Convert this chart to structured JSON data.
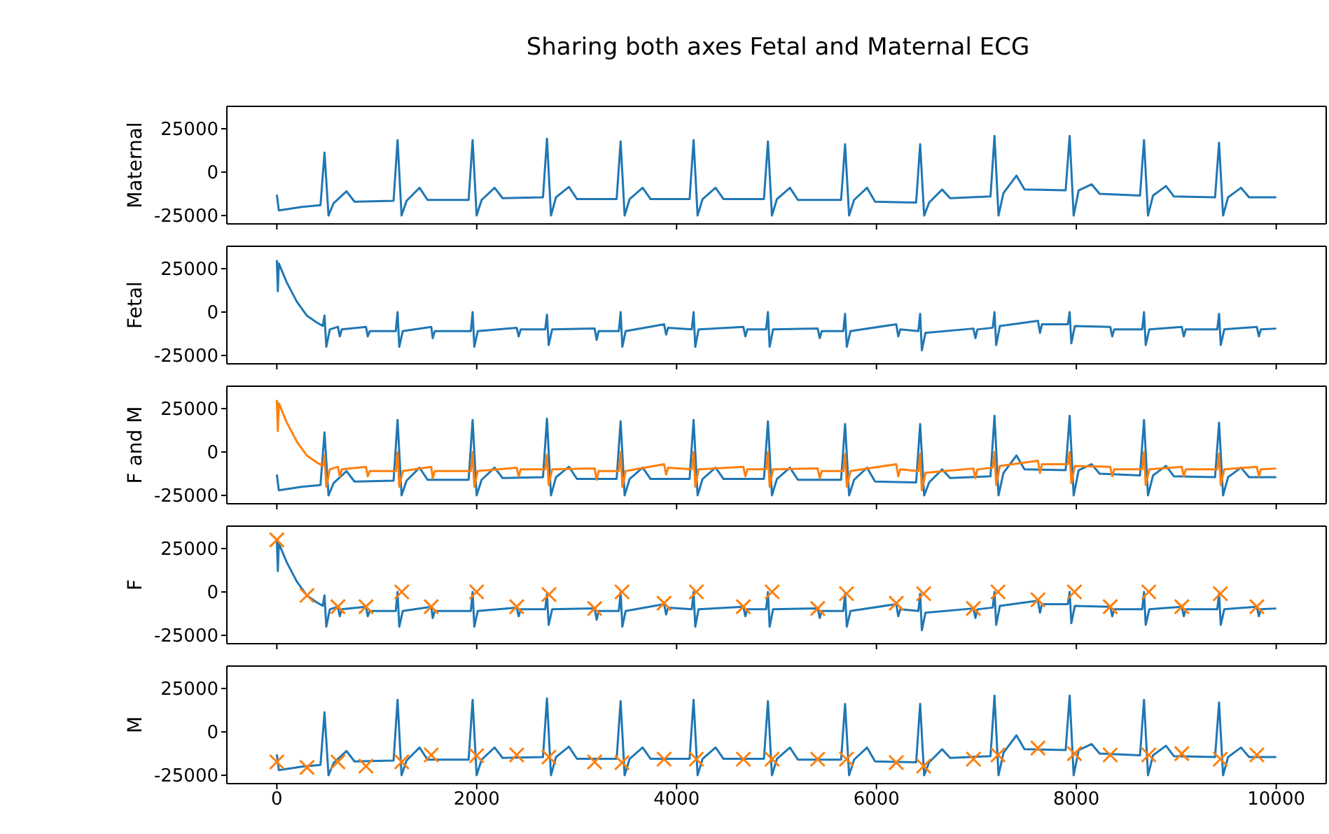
{
  "chart_data": [
    {
      "type": "line",
      "title": "Sharing both axes Fetal and Maternal ECG",
      "ylabel": "Maternal",
      "xlim": [
        -500,
        10500
      ],
      "xticks": [
        0,
        2000,
        4000,
        6000,
        8000,
        10000
      ],
      "ylim": [
        -29800,
        37900
      ],
      "yticks": [
        -25000,
        0,
        25000
      ],
      "tick_labels": "y",
      "series": [
        {
          "color": "#1f77b4",
          "x": [
            0,
            20,
            250,
            437,
            477,
            517,
            567,
            697,
            777,
            1168,
            1208,
            1248,
            1298,
            1428,
            1508,
            1919,
            1959,
            1999,
            2049,
            2179,
            2259,
            2663,
            2703,
            2743,
            2793,
            2923,
            3003,
            3400,
            3440,
            3480,
            3530,
            3660,
            3740,
            4130,
            4170,
            4210,
            4260,
            4390,
            4470,
            4874,
            4914,
            4954,
            5004,
            5134,
            5214,
            5646,
            5686,
            5726,
            5776,
            5906,
            5986,
            6397,
            6437,
            6477,
            6527,
            6657,
            6737,
            7141,
            7181,
            7221,
            7271,
            7401,
            7481,
            7893,
            7933,
            7973,
            8023,
            8153,
            8233,
            8637,
            8677,
            8717,
            8767,
            8897,
            8977,
            9388,
            9428,
            9468,
            9518,
            9648,
            9728,
            10000
          ],
          "values": [
            -13000,
            -22000,
            -20000,
            -19000,
            11300,
            -25000,
            -18000,
            -11000,
            -17000,
            -16500,
            18500,
            -25000,
            -16500,
            -9000,
            -16000,
            -16000,
            18500,
            -25000,
            -16000,
            -9000,
            -15000,
            -14500,
            19300,
            -25000,
            -14500,
            -8500,
            -15500,
            -15500,
            17700,
            -25000,
            -15500,
            -9000,
            -15500,
            -15500,
            18500,
            -25000,
            -15500,
            -9000,
            -15500,
            -15500,
            17700,
            -25000,
            -15500,
            -9000,
            -16000,
            -16000,
            16100,
            -25000,
            -16000,
            -9000,
            -17000,
            -17500,
            16100,
            -25000,
            -17500,
            -10000,
            -15000,
            -14000,
            20900,
            -25000,
            -12000,
            -2000,
            -10000,
            -10500,
            20900,
            -25000,
            -10500,
            -7000,
            -12500,
            -13500,
            18500,
            -25000,
            -13500,
            -8000,
            -14000,
            -14500,
            16900,
            -25000,
            -14500,
            -9000,
            -14500,
            -14500
          ]
        }
      ]
    },
    {
      "type": "line",
      "ylabel": "Fetal",
      "xlim": [
        -500,
        10500
      ],
      "xticks": [
        0,
        2000,
        4000,
        6000,
        8000,
        10000
      ],
      "ylim": [
        -29800,
        37900
      ],
      "yticks": [
        -25000,
        0,
        25000
      ],
      "tick_labels": "y",
      "series": [
        {
          "color": "#1f77b4",
          "x": [
            0,
            10,
            20,
            100,
            200,
            300,
            400,
            460,
            477,
            495,
            530,
            611,
            630,
            650,
            892,
            910,
            930,
            1190,
            1208,
            1225,
            1260,
            1545,
            1560,
            1580,
            1941,
            1959,
            1976,
            2010,
            2400,
            2420,
            2440,
            2685,
            2703,
            2720,
            2755,
            3180,
            3200,
            3220,
            3422,
            3440,
            3457,
            3490,
            3875,
            3895,
            3915,
            4152,
            4170,
            4187,
            4220,
            4668,
            4688,
            4708,
            4896,
            4914,
            4931,
            4965,
            5412,
            5432,
            5452,
            5668,
            5686,
            5703,
            5740,
            6198,
            6218,
            6238,
            6419,
            6437,
            6454,
            6490,
            6970,
            6990,
            7010,
            7163,
            7181,
            7198,
            7235,
            7616,
            7636,
            7656,
            7915,
            7933,
            7950,
            7985,
            8339,
            8359,
            8379,
            8659,
            8677,
            8694,
            8730,
            9055,
            9075,
            9095,
            9410,
            9428,
            9445,
            9480,
            9806,
            9826,
            9846,
            10000
          ],
          "values": [
            30000,
            12000,
            28000,
            17000,
            6000,
            -2000,
            -6000,
            -8000,
            -2000,
            -20000,
            -10000,
            -8500,
            -14000,
            -10000,
            -8500,
            -14000,
            -11000,
            -11000,
            0,
            -20000,
            -11000,
            -8500,
            -15000,
            -11000,
            -11000,
            0,
            -20000,
            -11000,
            -9000,
            -14000,
            -10000,
            -10000,
            -1500,
            -19000,
            -10000,
            -9500,
            -16000,
            -11000,
            -11000,
            0,
            -20000,
            -11000,
            -7000,
            -13000,
            -9000,
            -10000,
            0,
            -20000,
            -10000,
            -8500,
            -14000,
            -10000,
            -10000,
            0,
            -20000,
            -10000,
            -9500,
            -15000,
            -11000,
            -11000,
            -1000,
            -20000,
            -11000,
            -7000,
            -14000,
            -10000,
            -11000,
            -1000,
            -22000,
            -12000,
            -9500,
            -15000,
            -10000,
            -9000,
            0,
            -19000,
            -8000,
            -5000,
            -12000,
            -7000,
            -7000,
            0,
            -18000,
            -8000,
            -8500,
            -14000,
            -10000,
            -10000,
            0,
            -19000,
            -10000,
            -8500,
            -14000,
            -10000,
            -10000,
            -1000,
            -19000,
            -10000,
            -8500,
            -14000,
            -10000,
            -9500
          ]
        }
      ]
    },
    {
      "type": "line",
      "ylabel": "F and M",
      "xlim": [
        -500,
        10500
      ],
      "xticks": [
        0,
        2000,
        4000,
        6000,
        8000,
        10000
      ],
      "ylim": [
        -29800,
        37900
      ],
      "yticks": [
        -25000,
        0,
        25000
      ],
      "tick_labels": "y",
      "series": [
        {
          "color": "#1f77b4",
          "x": [
            0,
            20,
            250,
            437,
            477,
            517,
            567,
            697,
            777,
            1168,
            1208,
            1248,
            1298,
            1428,
            1508,
            1919,
            1959,
            1999,
            2049,
            2179,
            2259,
            2663,
            2703,
            2743,
            2793,
            2923,
            3003,
            3400,
            3440,
            3480,
            3530,
            3660,
            3740,
            4130,
            4170,
            4210,
            4260,
            4390,
            4470,
            4874,
            4914,
            4954,
            5004,
            5134,
            5214,
            5646,
            5686,
            5726,
            5776,
            5906,
            5986,
            6397,
            6437,
            6477,
            6527,
            6657,
            6737,
            7141,
            7181,
            7221,
            7271,
            7401,
            7481,
            7893,
            7933,
            7973,
            8023,
            8153,
            8233,
            8637,
            8677,
            8717,
            8767,
            8897,
            8977,
            9388,
            9428,
            9468,
            9518,
            9648,
            9728,
            10000
          ],
          "values": [
            -13000,
            -22000,
            -20000,
            -19000,
            11300,
            -25000,
            -18000,
            -11000,
            -17000,
            -16500,
            18500,
            -25000,
            -16500,
            -9000,
            -16000,
            -16000,
            18500,
            -25000,
            -16000,
            -9000,
            -15000,
            -14500,
            19300,
            -25000,
            -14500,
            -8500,
            -15500,
            -15500,
            17700,
            -25000,
            -15500,
            -9000,
            -15500,
            -15500,
            18500,
            -25000,
            -15500,
            -9000,
            -15500,
            -15500,
            17700,
            -25000,
            -15500,
            -9000,
            -16000,
            -16000,
            16100,
            -25000,
            -16000,
            -9000,
            -17000,
            -17500,
            16100,
            -25000,
            -17500,
            -10000,
            -15000,
            -14000,
            20900,
            -25000,
            -12000,
            -2000,
            -10000,
            -10500,
            20900,
            -25000,
            -10500,
            -7000,
            -12500,
            -13500,
            18500,
            -25000,
            -13500,
            -8000,
            -14000,
            -14500,
            16900,
            -25000,
            -14500,
            -9000,
            -14500,
            -14500
          ]
        },
        {
          "color": "#ff7f0e",
          "x": [
            0,
            10,
            20,
            100,
            200,
            300,
            400,
            460,
            477,
            495,
            530,
            611,
            630,
            650,
            892,
            910,
            930,
            1190,
            1208,
            1225,
            1260,
            1545,
            1560,
            1580,
            1941,
            1959,
            1976,
            2010,
            2400,
            2420,
            2440,
            2685,
            2703,
            2720,
            2755,
            3180,
            3200,
            3220,
            3422,
            3440,
            3457,
            3490,
            3875,
            3895,
            3915,
            4152,
            4170,
            4187,
            4220,
            4668,
            4688,
            4708,
            4896,
            4914,
            4931,
            4965,
            5412,
            5432,
            5452,
            5668,
            5686,
            5703,
            5740,
            6198,
            6218,
            6238,
            6419,
            6437,
            6454,
            6490,
            6970,
            6990,
            7010,
            7163,
            7181,
            7198,
            7235,
            7616,
            7636,
            7656,
            7915,
            7933,
            7950,
            7985,
            8339,
            8359,
            8379,
            8659,
            8677,
            8694,
            8730,
            9055,
            9075,
            9095,
            9410,
            9428,
            9445,
            9480,
            9806,
            9826,
            9846,
            10000
          ],
          "values": [
            30000,
            12000,
            28000,
            17000,
            6000,
            -2000,
            -6000,
            -8000,
            -2000,
            -20000,
            -10000,
            -8500,
            -14000,
            -10000,
            -8500,
            -14000,
            -11000,
            -11000,
            0,
            -20000,
            -11000,
            -8500,
            -15000,
            -11000,
            -11000,
            0,
            -20000,
            -11000,
            -9000,
            -14000,
            -10000,
            -10000,
            -1500,
            -19000,
            -10000,
            -9500,
            -16000,
            -11000,
            -11000,
            0,
            -20000,
            -11000,
            -7000,
            -13000,
            -9000,
            -10000,
            0,
            -20000,
            -10000,
            -8500,
            -14000,
            -10000,
            -10000,
            0,
            -20000,
            -10000,
            -9500,
            -15000,
            -11000,
            -11000,
            -1000,
            -20000,
            -11000,
            -7000,
            -14000,
            -10000,
            -11000,
            -1000,
            -22000,
            -12000,
            -9500,
            -15000,
            -10000,
            -9000,
            0,
            -19000,
            -8000,
            -5000,
            -12000,
            -7000,
            -7000,
            0,
            -18000,
            -8000,
            -8500,
            -14000,
            -10000,
            -10000,
            0,
            -19000,
            -10000,
            -8500,
            -14000,
            -10000,
            -10000,
            -1000,
            -19000,
            -10000,
            -8500,
            -14000,
            -10000,
            -9500
          ]
        }
      ]
    },
    {
      "type": "line",
      "ylabel": "F",
      "xlim": [
        -500,
        10500
      ],
      "xticks": [
        0,
        2000,
        4000,
        6000,
        8000,
        10000
      ],
      "ylim": [
        -29800,
        37900
      ],
      "yticks": [
        -25000,
        0,
        25000
      ],
      "tick_labels": "y",
      "series": [
        {
          "color": "#1f77b4",
          "x": [
            0,
            10,
            20,
            100,
            200,
            300,
            400,
            460,
            477,
            495,
            530,
            611,
            630,
            650,
            892,
            910,
            930,
            1190,
            1208,
            1225,
            1260,
            1545,
            1560,
            1580,
            1941,
            1959,
            1976,
            2010,
            2400,
            2420,
            2440,
            2685,
            2703,
            2720,
            2755,
            3180,
            3200,
            3220,
            3422,
            3440,
            3457,
            3490,
            3875,
            3895,
            3915,
            4152,
            4170,
            4187,
            4220,
            4668,
            4688,
            4708,
            4896,
            4914,
            4931,
            4965,
            5412,
            5432,
            5452,
            5668,
            5686,
            5703,
            5740,
            6198,
            6218,
            6238,
            6419,
            6437,
            6454,
            6490,
            6970,
            6990,
            7010,
            7163,
            7181,
            7198,
            7235,
            7616,
            7636,
            7656,
            7915,
            7933,
            7950,
            7985,
            8339,
            8359,
            8379,
            8659,
            8677,
            8694,
            8730,
            9055,
            9075,
            9095,
            9410,
            9428,
            9445,
            9480,
            9806,
            9826,
            9846,
            10000
          ],
          "values": [
            30000,
            12000,
            28000,
            17000,
            6000,
            -2000,
            -6000,
            -8000,
            -2000,
            -20000,
            -10000,
            -8500,
            -14000,
            -10000,
            -8500,
            -14000,
            -11000,
            -11000,
            0,
            -20000,
            -11000,
            -8500,
            -15000,
            -11000,
            -11000,
            0,
            -20000,
            -11000,
            -9000,
            -14000,
            -10000,
            -10000,
            -1500,
            -19000,
            -10000,
            -9500,
            -16000,
            -11000,
            -11000,
            0,
            -20000,
            -11000,
            -7000,
            -13000,
            -9000,
            -10000,
            0,
            -20000,
            -10000,
            -8500,
            -14000,
            -10000,
            -10000,
            0,
            -20000,
            -10000,
            -9500,
            -15000,
            -11000,
            -11000,
            -1000,
            -20000,
            -11000,
            -7000,
            -14000,
            -10000,
            -11000,
            -1000,
            -22000,
            -12000,
            -9500,
            -15000,
            -10000,
            -9000,
            0,
            -19000,
            -8000,
            -5000,
            -12000,
            -7000,
            -7000,
            0,
            -18000,
            -8000,
            -8500,
            -14000,
            -10000,
            -10000,
            0,
            -19000,
            -10000,
            -8500,
            -14000,
            -10000,
            -10000,
            -1000,
            -19000,
            -10000,
            -8500,
            -14000,
            -10000,
            -9500
          ]
        },
        {
          "type": "scatter",
          "marker": "cross",
          "color": "#ff7f0e",
          "x": [
            0,
            302,
            611,
            892,
            1250,
            1545,
            1999,
            2400,
            2723,
            3180,
            3454,
            3875,
            4198,
            4668,
            4956,
            5412,
            5700,
            6198,
            6472,
            6970,
            7216,
            7616,
            7981,
            8339,
            8725,
            9055,
            9441,
            9806
          ],
          "values": [
            30000,
            -2000,
            -8500,
            -8500,
            0,
            -8500,
            0,
            -8500,
            -1500,
            -9500,
            0,
            -6500,
            0,
            -8500,
            0,
            -9500,
            -1000,
            -6500,
            -1000,
            -9500,
            0,
            -4500,
            0,
            -8500,
            0,
            -8500,
            -1000,
            -8500
          ]
        }
      ]
    },
    {
      "type": "line",
      "ylabel": "M",
      "xlim": [
        -500,
        10500
      ],
      "xticks": [
        0,
        2000,
        4000,
        6000,
        8000,
        10000
      ],
      "ylim": [
        -29800,
        37900
      ],
      "yticks": [
        -25000,
        0,
        25000
      ],
      "series": [
        {
          "color": "#1f77b4",
          "x": [
            0,
            20,
            250,
            437,
            477,
            517,
            567,
            697,
            777,
            1168,
            1208,
            1248,
            1298,
            1428,
            1508,
            1919,
            1959,
            1999,
            2049,
            2179,
            2259,
            2663,
            2703,
            2743,
            2793,
            2923,
            3003,
            3400,
            3440,
            3480,
            3530,
            3660,
            3740,
            4130,
            4170,
            4210,
            4260,
            4390,
            4470,
            4874,
            4914,
            4954,
            5004,
            5134,
            5214,
            5646,
            5686,
            5726,
            5776,
            5906,
            5986,
            6397,
            6437,
            6477,
            6527,
            6657,
            6737,
            7141,
            7181,
            7221,
            7271,
            7401,
            7481,
            7893,
            7933,
            7973,
            8023,
            8153,
            8233,
            8637,
            8677,
            8717,
            8767,
            8897,
            8977,
            9388,
            9428,
            9468,
            9518,
            9648,
            9728,
            10000
          ],
          "values": [
            -13000,
            -22000,
            -20000,
            -19000,
            11300,
            -25000,
            -18000,
            -11000,
            -17000,
            -16500,
            18500,
            -25000,
            -16500,
            -9000,
            -16000,
            -16000,
            18500,
            -25000,
            -16000,
            -9000,
            -15000,
            -14500,
            19300,
            -25000,
            -14500,
            -8500,
            -15500,
            -15500,
            17700,
            -25000,
            -15500,
            -9000,
            -15500,
            -15500,
            18500,
            -25000,
            -15500,
            -9000,
            -15500,
            -15500,
            17700,
            -25000,
            -15500,
            -9000,
            -16000,
            -16000,
            16100,
            -25000,
            -16000,
            -9000,
            -17000,
            -17500,
            16100,
            -25000,
            -17500,
            -10000,
            -15000,
            -14000,
            20900,
            -25000,
            -12000,
            -2000,
            -10000,
            -10500,
            20900,
            -25000,
            -10500,
            -7000,
            -12500,
            -13500,
            18500,
            -25000,
            -13500,
            -8000,
            -14000,
            -14500,
            16900,
            -25000,
            -14500,
            -9000,
            -14500,
            -14500
          ]
        },
        {
          "type": "scatter",
          "marker": "cross",
          "color": "#ff7f0e",
          "x": [
            0,
            302,
            611,
            892,
            1250,
            1545,
            1999,
            2400,
            2723,
            3180,
            3454,
            3875,
            4198,
            4668,
            4956,
            5412,
            5700,
            6198,
            6472,
            6970,
            7216,
            7616,
            7981,
            8339,
            8725,
            9055,
            9441,
            9806
          ],
          "values": [
            -17300,
            -20500,
            -17300,
            -19700,
            -17300,
            -13300,
            -13700,
            -13300,
            -14500,
            -17300,
            -17700,
            -15700,
            -15700,
            -15700,
            -15700,
            -15700,
            -15700,
            -17700,
            -19700,
            -15700,
            -13300,
            -9300,
            -12500,
            -13300,
            -13300,
            -12500,
            -15700,
            -13300
          ]
        }
      ]
    }
  ]
}
